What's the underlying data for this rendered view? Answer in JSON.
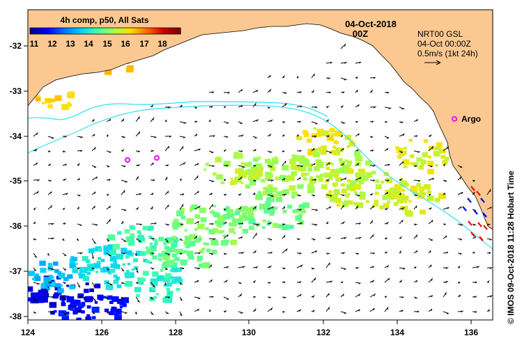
{
  "map": {
    "date": "04-Oct-2018",
    "time": "00Z",
    "colorbar": {
      "title": "4h comp, p50, All Sats",
      "min": 10,
      "max": 19,
      "ticks": [
        "11",
        "12",
        "13",
        "14",
        "15",
        "16",
        "17",
        "18"
      ],
      "colors": [
        "#00008f",
        "#0000ff",
        "#0070ff",
        "#00d0ff",
        "#40ffb0",
        "#a0ff50",
        "#ffe000",
        "#ff7000",
        "#d00000",
        "#800000"
      ]
    },
    "current_legend": {
      "product": "NRT00 GSL",
      "datetime": "04-Oct 00:00Z",
      "scale": "0.5m/s (1kt 24h)"
    },
    "argo": {
      "label": "Argo",
      "color": "#ff00ff"
    },
    "credit": "© IMOS 09-Oct-2018 11:28 Hobart Time",
    "x_ticks": [
      "124",
      "126",
      "128",
      "130",
      "132",
      "134",
      "136"
    ],
    "y_ticks": [
      "-32",
      "-33",
      "-34",
      "-35",
      "-36",
      "-37",
      "-38"
    ],
    "lon_range": [
      124,
      136.6
    ],
    "lat_range": [
      -38.1,
      -31.3
    ],
    "land_color": "#fbc891",
    "contour_color": "#30e0f0",
    "arrow_color": "#000000",
    "drifter_colors": [
      "#ff0000",
      "#0000ff"
    ]
  }
}
